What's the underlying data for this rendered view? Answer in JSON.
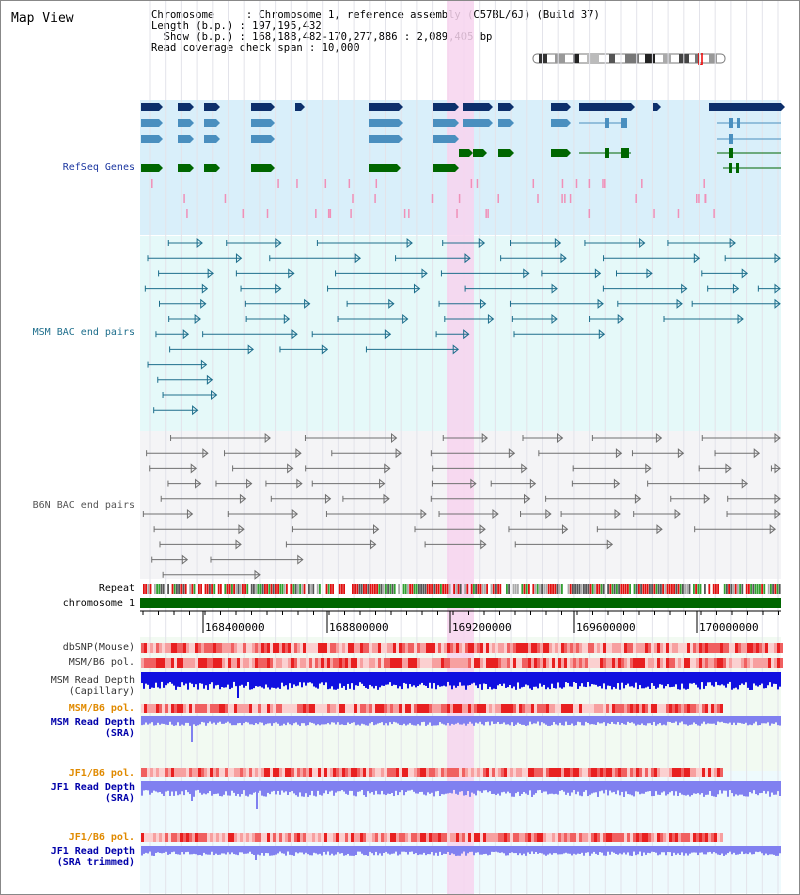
{
  "title": "Map View",
  "info": {
    "chromosome": "Chromosome     : Chromosome 1, reference assembly (C57BL/6J) (Build 37)",
    "length": "Length (b.p.) : 197,195,432",
    "show": "  Show (b.p.) : 168,188,482-170,277,886 : 2,089,405 bp",
    "coverage": "Read coverage check span : 10,000"
  },
  "tracks": {
    "refseq": "RefSeq Genes",
    "msm_bac": "MSM BAC end pairs",
    "b6n_bac": "B6N BAC end pairs",
    "repeat": "Repeat",
    "chromosome": "chromosome 1",
    "dbsnp": "dbSNP(Mouse)",
    "msm_b6_pol_1": "MSM/B6 pol.",
    "msm_depth_1": "MSM Read Depth\n(Capillary)",
    "msm_b6_pol_2": "MSM/B6 pol.",
    "msm_depth_2": "MSM Read Depth\n(SRA)",
    "jf1_b6_pol_1": "JF1/B6 pol.",
    "jf1_depth_1": "JF1 Read Depth\n(SRA)",
    "jf1_b6_pol_2": "JF1/B6 pol.",
    "jf1_depth_2": "JF1 Read Depth\n(SRA trimmed)"
  },
  "axis": {
    "ticks": [
      "168400000",
      "168800000",
      "169200000",
      "169600000",
      "170000000"
    ]
  },
  "colors": {
    "refseq_bg": "#d9effa",
    "msm_bg": "#e5f9f9",
    "b6n_bg": "#f4f4f6",
    "highlight": "#f7d3ee",
    "gene_dark": "#0d2f6b",
    "gene_mid": "#4a8fbf",
    "gene_green": "#006600",
    "msm_color": "#1e6e8c",
    "b6n_color": "#707070",
    "chrom_bar": "#006600",
    "depth_cap": "#1010e0",
    "depth_sra": "#8080f0",
    "label_blue": "#1b36a0",
    "label_teal": "#1e6e8c",
    "label_orange": "#e08a00",
    "label_navy": "#0000aa"
  }
}
